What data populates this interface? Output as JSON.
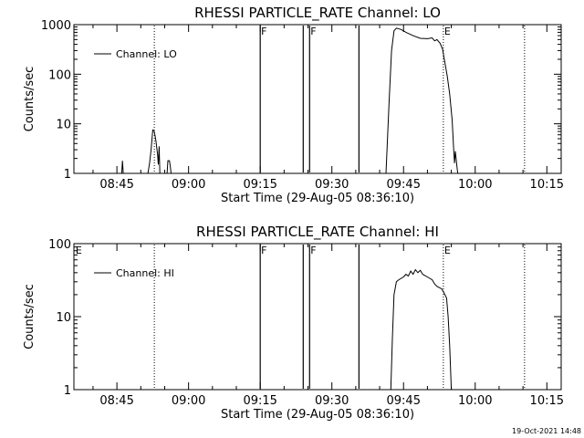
{
  "footer": {
    "timestamp": "19-Oct-2021 14:48"
  },
  "chart_data": [
    {
      "type": "line",
      "title": "RHESSI PARTICLE_RATE Channel: LO",
      "xlabel": "Start Time (29-Aug-05 08:36:10)",
      "ylabel": "Counts/sec",
      "yscale": "log",
      "xlim": [
        "08:36",
        "10:18"
      ],
      "ylim": [
        1,
        1000
      ],
      "x_ticks": [
        "08:45",
        "09:00",
        "09:15",
        "09:30",
        "09:45",
        "10:00",
        "10:15"
      ],
      "y_ticks": [
        "1",
        "10",
        "100",
        "1000"
      ],
      "legend": {
        "position": "top-left",
        "entries": [
          "Channel: LO"
        ]
      },
      "series": [
        {
          "name": "Channel: LO",
          "points": [
            [
              "08:46:00",
              1
            ],
            [
              "08:46:10",
              1.8
            ],
            [
              "08:46:20",
              1
            ],
            [
              "08:51:30",
              1
            ],
            [
              "08:51:50",
              1.6
            ],
            [
              "08:52:10",
              3
            ],
            [
              "08:52:30",
              7.5
            ],
            [
              "08:52:50",
              7
            ],
            [
              "08:53:10",
              4.5
            ],
            [
              "08:53:30",
              2.5
            ],
            [
              "08:53:40",
              1.5
            ],
            [
              "08:53:50",
              3.5
            ],
            [
              "08:54:00",
              1
            ],
            [
              "08:55:30",
              1
            ],
            [
              "08:55:40",
              1.8
            ],
            [
              "08:56:00",
              1.8
            ],
            [
              "08:56:10",
              1.4
            ],
            [
              "08:56:20",
              1
            ],
            [
              "09:41:20",
              1
            ],
            [
              "09:42:00",
              30
            ],
            [
              "09:42:30",
              300
            ],
            [
              "09:43:00",
              750
            ],
            [
              "09:43:30",
              850
            ],
            [
              "09:44:30",
              800
            ],
            [
              "09:45:30",
              700
            ],
            [
              "09:47:00",
              600
            ],
            [
              "09:48:30",
              530
            ],
            [
              "09:50:00",
              520
            ],
            [
              "09:51:00",
              540
            ],
            [
              "09:51:30",
              470
            ],
            [
              "09:52:00",
              500
            ],
            [
              "09:52:40",
              420
            ],
            [
              "09:53:10",
              320
            ],
            [
              "09:53:40",
              170
            ],
            [
              "09:54:10",
              90
            ],
            [
              "09:54:40",
              40
            ],
            [
              "09:55:10",
              12
            ],
            [
              "09:55:30",
              3
            ],
            [
              "09:55:40",
              1.6
            ],
            [
              "09:55:50",
              2.8
            ],
            [
              "09:56:10",
              1.4
            ],
            [
              "09:56:20",
              1
            ]
          ]
        }
      ],
      "flags": [
        {
          "time": "08:52:50",
          "label": "",
          "style": "dotted"
        },
        {
          "time": "09:15:00",
          "label": "F",
          "style": "solid"
        },
        {
          "time": "09:24:00",
          "label": "",
          "style": "solid"
        },
        {
          "time": "09:25:20",
          "label": "F",
          "style": "solid"
        },
        {
          "time": "09:35:40",
          "label": "",
          "style": "solid"
        },
        {
          "time": "09:53:20",
          "label": "E",
          "style": "dotted"
        },
        {
          "time": "10:10:20",
          "label": "",
          "style": "dotted"
        }
      ]
    },
    {
      "type": "line",
      "title": "RHESSI PARTICLE_RATE Channel: HI",
      "xlabel": "Start Time (29-Aug-05 08:36:10)",
      "ylabel": "Counts/sec",
      "yscale": "log",
      "xlim": [
        "08:36",
        "10:18"
      ],
      "ylim": [
        1,
        100
      ],
      "x_ticks": [
        "08:45",
        "09:00",
        "09:15",
        "09:30",
        "09:45",
        "10:00",
        "10:15"
      ],
      "y_ticks": [
        "1",
        "10",
        "100"
      ],
      "legend": {
        "position": "top-left",
        "entries": [
          "Channel: HI"
        ]
      },
      "series": [
        {
          "name": "Channel: HI",
          "points": [
            [
              "09:42:20",
              1
            ],
            [
              "09:42:40",
              5
            ],
            [
              "09:43:00",
              20
            ],
            [
              "09:43:30",
              30
            ],
            [
              "09:44:00",
              32
            ],
            [
              "09:45:00",
              35
            ],
            [
              "09:45:30",
              38
            ],
            [
              "09:46:00",
              36
            ],
            [
              "09:46:30",
              42
            ],
            [
              "09:47:00",
              38
            ],
            [
              "09:47:30",
              44
            ],
            [
              "09:48:00",
              40
            ],
            [
              "09:48:30",
              43
            ],
            [
              "09:49:00",
              38
            ],
            [
              "09:50:00",
              35
            ],
            [
              "09:51:00",
              32
            ],
            [
              "09:51:30",
              28
            ],
            [
              "09:52:00",
              26
            ],
            [
              "09:53:00",
              24
            ],
            [
              "09:53:30",
              21
            ],
            [
              "09:54:00",
              18
            ],
            [
              "09:54:20",
              10
            ],
            [
              "09:54:40",
              4
            ],
            [
              "09:55:00",
              1
            ]
          ]
        }
      ],
      "flags": [
        {
          "time": "08:36:10",
          "label": "E",
          "style": "none"
        },
        {
          "time": "08:52:50",
          "label": "",
          "style": "dotted"
        },
        {
          "time": "09:15:00",
          "label": "F",
          "style": "solid"
        },
        {
          "time": "09:24:00",
          "label": "",
          "style": "solid"
        },
        {
          "time": "09:25:20",
          "label": "F",
          "style": "solid"
        },
        {
          "time": "09:35:40",
          "label": "",
          "style": "solid"
        },
        {
          "time": "09:53:20",
          "label": "E",
          "style": "dotted"
        },
        {
          "time": "10:10:20",
          "label": "",
          "style": "dotted"
        }
      ]
    }
  ]
}
